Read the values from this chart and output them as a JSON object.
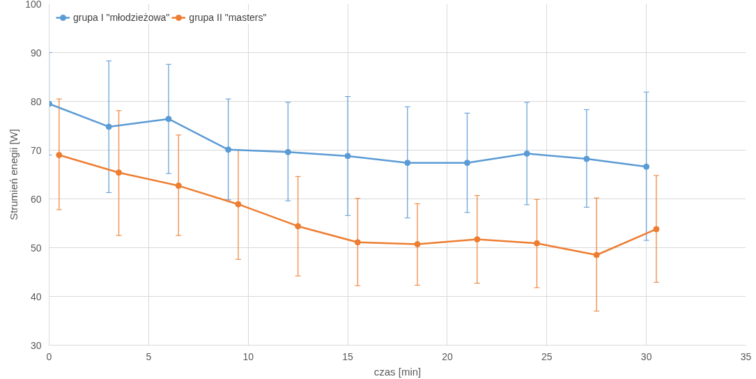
{
  "chart_data": {
    "type": "line",
    "xlabel": "czas [min]",
    "ylabel": "Strumień enegii [W]",
    "xlim": [
      0,
      35
    ],
    "xticks": [
      0,
      5,
      10,
      15,
      20,
      25,
      30,
      35
    ],
    "ylim": [
      30,
      100
    ],
    "yticks": [
      30,
      40,
      50,
      60,
      70,
      80,
      90,
      100
    ],
    "grid": true,
    "legend": "top left",
    "marker": "circle",
    "line_style": "solid",
    "series": [
      {
        "name": "grupa I \"młodzieżowa\"",
        "color": "#5b9bd5",
        "x": [
          0,
          3,
          6,
          9,
          12,
          15,
          18,
          21,
          24,
          27,
          30
        ],
        "values": [
          79.5,
          74.8,
          76.4,
          70.1,
          69.6,
          68.8,
          67.4,
          67.4,
          69.3,
          68.2,
          66.6
        ],
        "errors": [
          [
            69,
            90
          ],
          [
            61.3,
            88.3
          ],
          [
            65.2,
            87.6
          ],
          [
            59.8,
            80.5
          ],
          [
            59.6,
            79.8
          ],
          [
            56.6,
            81
          ],
          [
            56.1,
            78.9
          ],
          [
            57.2,
            77.6
          ],
          [
            58.8,
            79.8
          ],
          [
            58.3,
            78.3
          ],
          [
            51.5,
            81.9
          ]
        ]
      },
      {
        "name": "grupa II \"masters\"",
        "color": "#ed7d31",
        "x": [
          0.5,
          3.5,
          6.5,
          9.5,
          12.5,
          15.5,
          18.5,
          21.5,
          24.5,
          27.5,
          30.5
        ],
        "values": [
          69,
          65.4,
          62.7,
          58.9,
          54.4,
          51.1,
          50.7,
          51.7,
          50.9,
          48.5,
          53.8
        ],
        "errors": [
          [
            57.8,
            80.5
          ],
          [
            52.5,
            78.1
          ],
          [
            52.5,
            73.1
          ],
          [
            47.6,
            70.1
          ],
          [
            44.2,
            64.6
          ],
          [
            42.2,
            60.1
          ],
          [
            42.3,
            59
          ],
          [
            42.7,
            60.7
          ],
          [
            41.8,
            59.9
          ],
          [
            37,
            60.2
          ],
          [
            42.9,
            64.8
          ]
        ]
      }
    ]
  }
}
